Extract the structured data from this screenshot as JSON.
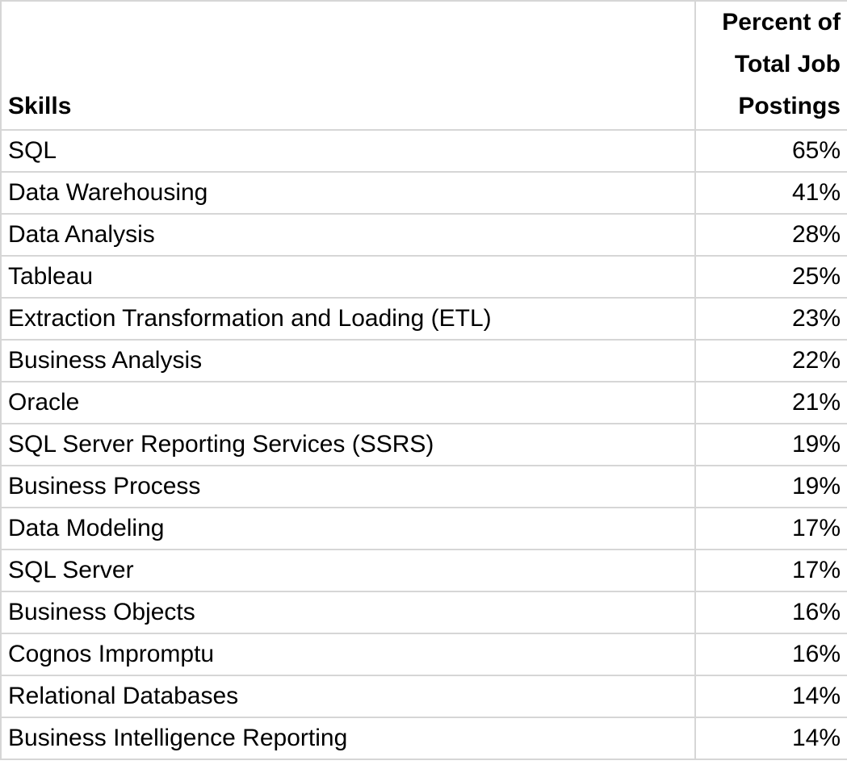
{
  "table": {
    "header": [
      "Skills",
      "Percent of Total Job Postings"
    ],
    "rows": [
      [
        "SQL",
        "65%"
      ],
      [
        "Data Warehousing",
        "41%"
      ],
      [
        "Data Analysis",
        "28%"
      ],
      [
        "Tableau",
        "25%"
      ],
      [
        "Extraction Transformation and Loading (ETL)",
        "23%"
      ],
      [
        "Business Analysis",
        "22%"
      ],
      [
        "Oracle",
        "21%"
      ],
      [
        "SQL Server Reporting Services (SSRS)",
        "19%"
      ],
      [
        "Business Process",
        "19%"
      ],
      [
        "Data Modeling",
        "17%"
      ],
      [
        "SQL Server",
        "17%"
      ],
      [
        "Business Objects",
        "16%"
      ],
      [
        "Cognos Impromptu",
        "16%"
      ],
      [
        "Relational Databases",
        "14%"
      ],
      [
        "Business Intelligence Reporting",
        "14%"
      ]
    ]
  }
}
